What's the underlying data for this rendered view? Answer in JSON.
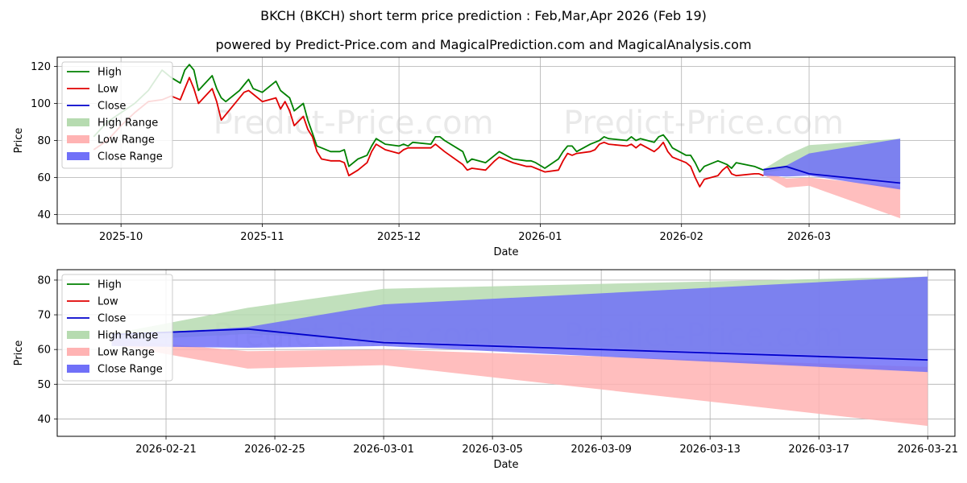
{
  "title": "BKCH (BKCH) short term price prediction : Feb,Mar,Apr 2026 (Feb 19)",
  "subtitle": "powered by Predict-Price.com and MagicalPrediction.com and MagicalAnalysis.com",
  "watermark": "Predict-Price.com",
  "colors": {
    "high": "#008000",
    "low": "#e00000",
    "close": "#0000cc",
    "high_range": "#b6dbb0",
    "low_range": "#ffb3b3",
    "close_range": "#7070f8"
  },
  "legend": [
    "High",
    "Low",
    "Close",
    "High Range",
    "Low Range",
    "Close Range"
  ],
  "chart_data": [
    {
      "type": "line",
      "name": "history-and-forecast",
      "xlabel": "Date",
      "ylabel": "Price",
      "ylim": [
        35,
        125
      ],
      "yticks": [
        40,
        60,
        80,
        100,
        120
      ],
      "xlim": [
        "2025-09-17",
        "2026-04-02"
      ],
      "xticks": [
        "2025-10",
        "2025-11",
        "2025-12",
        "2026-01",
        "2026-02",
        "2026-03"
      ],
      "grid": true,
      "legend_position": "top-left",
      "series": [
        {
          "name": "High",
          "dates": [
            "2025-09-25",
            "2025-09-28",
            "2025-10-01",
            "2025-10-04",
            "2025-10-07",
            "2025-10-10",
            "2025-10-12",
            "2025-10-14",
            "2025-10-15",
            "2025-10-16",
            "2025-10-17",
            "2025-10-18",
            "2025-10-21",
            "2025-10-22",
            "2025-10-23",
            "2025-10-24",
            "2025-10-27",
            "2025-10-28",
            "2025-10-29",
            "2025-10-30",
            "2025-11-01",
            "2025-11-04",
            "2025-11-05",
            "2025-11-06",
            "2025-11-07",
            "2025-11-08",
            "2025-11-10",
            "2025-11-11",
            "2025-11-12",
            "2025-11-13",
            "2025-11-14",
            "2025-11-16",
            "2025-11-18",
            "2025-11-19",
            "2025-11-20",
            "2025-11-22",
            "2025-11-24",
            "2025-11-25",
            "2025-11-26",
            "2025-11-28",
            "2025-12-01",
            "2025-12-02",
            "2025-12-03",
            "2025-12-04",
            "2025-12-08",
            "2025-12-09",
            "2025-12-10",
            "2025-12-11",
            "2025-12-15",
            "2025-12-16",
            "2025-12-17",
            "2025-12-20",
            "2025-12-22",
            "2025-12-23",
            "2025-12-26",
            "2025-12-29",
            "2025-12-30",
            "2025-12-31",
            "2026-01-02",
            "2026-01-05",
            "2026-01-06",
            "2026-01-07",
            "2026-01-08",
            "2026-01-09",
            "2026-01-12",
            "2026-01-13",
            "2026-01-14",
            "2026-01-15",
            "2026-01-16",
            "2026-01-20",
            "2026-01-21",
            "2026-01-22",
            "2026-01-23",
            "2026-01-26",
            "2026-01-27",
            "2026-01-28",
            "2026-01-29",
            "2026-01-30",
            "2026-02-02",
            "2026-02-03",
            "2026-02-04",
            "2026-02-05",
            "2026-02-06",
            "2026-02-09",
            "2026-02-10",
            "2026-02-11",
            "2026-02-12",
            "2026-02-13",
            "2026-02-17",
            "2026-02-18",
            "2026-02-19"
          ],
          "values": [
            82,
            90,
            95,
            100,
            107,
            118,
            114,
            111,
            118,
            121,
            118,
            107,
            115,
            108,
            103,
            101,
            107,
            110,
            113,
            108,
            106,
            112,
            107,
            105,
            103,
            96,
            100,
            91,
            84,
            77,
            76,
            74,
            74,
            75,
            66,
            70,
            72,
            77,
            81,
            78,
            77,
            78,
            77,
            79,
            78,
            82,
            82,
            80,
            74,
            68,
            70,
            68,
            72,
            74,
            70,
            69,
            69,
            68,
            65,
            70,
            74,
            77,
            77,
            74,
            78,
            79,
            80,
            82,
            81,
            80,
            82,
            80,
            81,
            79,
            82,
            83,
            80,
            76,
            72,
            72,
            68,
            63,
            66,
            69,
            68,
            67,
            65,
            68,
            66,
            65,
            64
          ]
        },
        {
          "name": "Low",
          "dates": [
            "2025-09-25",
            "2025-09-28",
            "2025-10-01",
            "2025-10-04",
            "2025-10-07",
            "2025-10-10",
            "2025-10-12",
            "2025-10-14",
            "2025-10-15",
            "2025-10-16",
            "2025-10-17",
            "2025-10-18",
            "2025-10-21",
            "2025-10-22",
            "2025-10-23",
            "2025-10-24",
            "2025-10-27",
            "2025-10-28",
            "2025-10-29",
            "2025-10-30",
            "2025-11-01",
            "2025-11-04",
            "2025-11-05",
            "2025-11-06",
            "2025-11-07",
            "2025-11-08",
            "2025-11-10",
            "2025-11-11",
            "2025-11-12",
            "2025-11-13",
            "2025-11-14",
            "2025-11-16",
            "2025-11-18",
            "2025-11-19",
            "2025-11-20",
            "2025-11-22",
            "2025-11-24",
            "2025-11-25",
            "2025-11-26",
            "2025-11-28",
            "2025-12-01",
            "2025-12-02",
            "2025-12-03",
            "2025-12-04",
            "2025-12-08",
            "2025-12-09",
            "2025-12-10",
            "2025-12-11",
            "2025-12-15",
            "2025-12-16",
            "2025-12-17",
            "2025-12-20",
            "2025-12-22",
            "2025-12-23",
            "2025-12-26",
            "2025-12-29",
            "2025-12-30",
            "2025-12-31",
            "2026-01-02",
            "2026-01-05",
            "2026-01-06",
            "2026-01-07",
            "2026-01-08",
            "2026-01-09",
            "2026-01-12",
            "2026-01-13",
            "2026-01-14",
            "2026-01-15",
            "2026-01-16",
            "2026-01-20",
            "2026-01-21",
            "2026-01-22",
            "2026-01-23",
            "2026-01-26",
            "2026-01-27",
            "2026-01-28",
            "2026-01-29",
            "2026-01-30",
            "2026-02-02",
            "2026-02-03",
            "2026-02-04",
            "2026-02-05",
            "2026-02-06",
            "2026-02-09",
            "2026-02-10",
            "2026-02-11",
            "2026-02-12",
            "2026-02-13",
            "2026-02-17",
            "2026-02-18",
            "2026-02-19"
          ],
          "values": [
            75,
            80,
            88,
            95,
            101,
            102,
            104,
            102,
            108,
            114,
            108,
            100,
            108,
            101,
            91,
            94,
            103,
            106,
            107,
            105,
            101,
            103,
            97,
            101,
            96,
            88,
            93,
            86,
            82,
            74,
            70,
            69,
            69,
            68,
            61,
            64,
            68,
            74,
            78,
            75,
            73,
            75,
            76,
            76,
            76,
            78,
            76,
            74,
            67,
            64,
            65,
            64,
            69,
            71,
            68,
            66,
            66,
            65,
            63,
            64,
            69,
            73,
            72,
            73,
            74,
            75,
            78,
            79,
            78,
            77,
            78,
            76,
            78,
            74,
            76,
            79,
            74,
            71,
            68,
            66,
            60,
            55,
            59,
            61,
            64,
            66,
            62,
            61,
            62,
            62,
            61
          ]
        },
        {
          "name": "Close",
          "dates": [
            "2026-02-19",
            "2026-02-24",
            "2026-03-01",
            "2026-03-21"
          ],
          "values": [
            64.3,
            65.9,
            62.0,
            57.0
          ]
        }
      ],
      "bands": [
        {
          "name": "High Range",
          "dates": [
            "2026-02-19",
            "2026-02-24",
            "2026-03-01",
            "2026-03-21"
          ],
          "upper": [
            64.5,
            72.0,
            77.5,
            81.0
          ],
          "lower": [
            62.5,
            64.5,
            62.5,
            57.5
          ]
        },
        {
          "name": "Low Range",
          "dates": [
            "2026-02-19",
            "2026-02-24",
            "2026-03-01",
            "2026-03-21"
          ],
          "upper": [
            63.0,
            59.5,
            60.0,
            55.0
          ],
          "lower": [
            61.5,
            54.5,
            55.5,
            38.0
          ]
        },
        {
          "name": "Close Range",
          "dates": [
            "2026-02-19",
            "2026-02-24",
            "2026-03-01",
            "2026-03-21"
          ],
          "upper": [
            64.0,
            66.5,
            73.0,
            81.0
          ],
          "lower": [
            61.0,
            60.5,
            61.0,
            53.5
          ]
        }
      ]
    },
    {
      "type": "line",
      "name": "forecast-zoom",
      "xlabel": "Date",
      "ylabel": "Price",
      "ylim": [
        35,
        83
      ],
      "yticks": [
        40,
        50,
        60,
        70,
        80
      ],
      "xlim": [
        "2026-02-17T00:00",
        "2026-03-22T00:00"
      ],
      "xticks": [
        "2026-02-21",
        "2026-02-25",
        "2026-03-01",
        "2026-03-05",
        "2026-03-09",
        "2026-03-13",
        "2026-03-17",
        "2026-03-21"
      ],
      "grid": true,
      "legend_position": "top-left",
      "series": [
        {
          "name": "Close",
          "dates": [
            "2026-02-19",
            "2026-02-24",
            "2026-03-01",
            "2026-03-21"
          ],
          "values": [
            64.3,
            65.9,
            62.0,
            57.0
          ]
        }
      ],
      "bands": [
        {
          "name": "High Range",
          "dates": [
            "2026-02-19",
            "2026-02-24",
            "2026-03-01",
            "2026-03-21"
          ],
          "upper": [
            64.5,
            72.0,
            77.5,
            81.0
          ],
          "lower": [
            62.5,
            64.5,
            62.5,
            57.5
          ]
        },
        {
          "name": "Low Range",
          "dates": [
            "2026-02-19",
            "2026-02-24",
            "2026-03-01",
            "2026-03-21"
          ],
          "upper": [
            63.0,
            59.5,
            60.0,
            55.0
          ],
          "lower": [
            61.5,
            54.5,
            55.5,
            38.0
          ]
        },
        {
          "name": "Close Range",
          "dates": [
            "2026-02-19",
            "2026-02-24",
            "2026-03-01",
            "2026-03-21"
          ],
          "upper": [
            64.0,
            66.5,
            73.0,
            81.0
          ],
          "lower": [
            61.0,
            60.5,
            61.0,
            53.5
          ]
        }
      ]
    }
  ]
}
